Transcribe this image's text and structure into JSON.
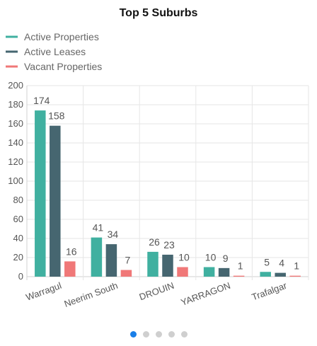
{
  "chart_data": {
    "type": "bar",
    "title": "Top 5 Suburbs",
    "xlabel": "",
    "ylabel": "",
    "categories": [
      "Warragul",
      "Neerim South",
      "DROUIN",
      "YARRAGON",
      "Trafalgar"
    ],
    "series": [
      {
        "name": "Active Properties",
        "color": "#40b0a0",
        "values": [
          174,
          41,
          26,
          10,
          5
        ]
      },
      {
        "name": "Active Leases",
        "color": "#466670",
        "values": [
          158,
          34,
          23,
          9,
          4
        ]
      },
      {
        "name": "Vacant Properties",
        "color": "#f07878",
        "values": [
          16,
          7,
          10,
          1,
          1
        ]
      }
    ],
    "ylim": [
      0,
      200
    ],
    "yticks": [
      0,
      20,
      40,
      60,
      80,
      100,
      120,
      140,
      160,
      180,
      200
    ],
    "grid": true,
    "legend_position": "top-left",
    "data_labels": true
  },
  "pager": {
    "count": 5,
    "active": 0
  }
}
